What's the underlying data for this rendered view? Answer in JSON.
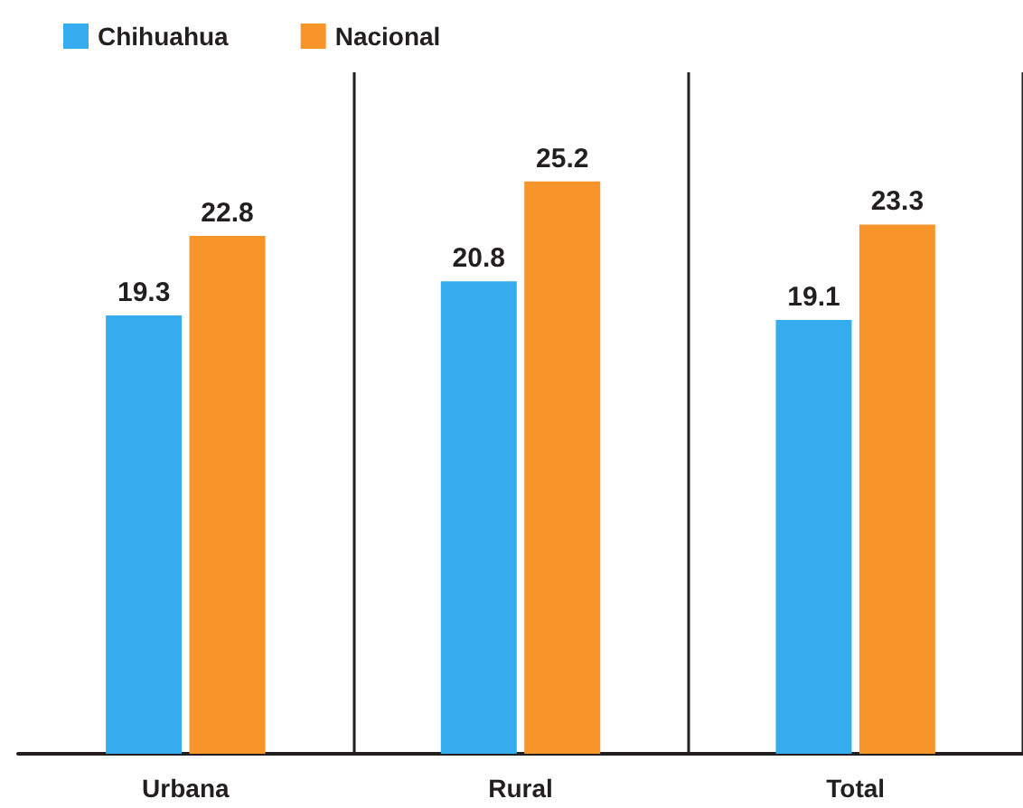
{
  "chart_data": {
    "type": "bar",
    "categories": [
      "Urbana",
      "Rural",
      "Total"
    ],
    "series": [
      {
        "name": "Chihuahua",
        "color": "#35aced",
        "values": [
          19.3,
          20.8,
          19.1
        ]
      },
      {
        "name": "Nacional",
        "color": "#f7952b",
        "values": [
          22.8,
          25.2,
          23.3
        ]
      }
    ],
    "data_labels": true,
    "legend": "top left",
    "grid": "x"
  }
}
